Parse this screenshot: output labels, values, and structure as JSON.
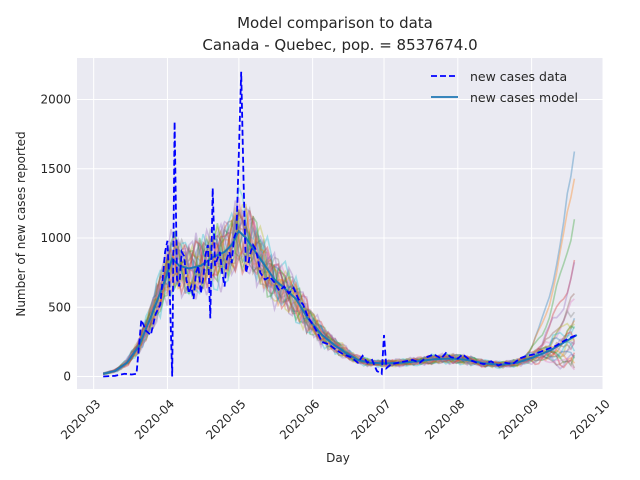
{
  "chart_data": {
    "type": "line",
    "title": "Model comparison to data",
    "subtitle": "Canada - Quebec, pop. = 8537674.0",
    "xlabel": "Day",
    "ylabel": "Number of new cases reported",
    "x_type": "date",
    "xlim": [
      "2020-02-23",
      "2020-10-01"
    ],
    "ylim": [
      -90,
      2300
    ],
    "x_ticks": [
      "2020-03-01",
      "2020-04-01",
      "2020-05-01",
      "2020-06-01",
      "2020-07-01",
      "2020-08-01",
      "2020-09-01",
      "2020-10-01"
    ],
    "x_tick_labels": [
      "2020-03",
      "2020-04",
      "2020-05",
      "2020-06",
      "2020-07",
      "2020-08",
      "2020-09",
      "2020-10"
    ],
    "y_ticks": [
      0,
      500,
      1000,
      1500,
      2000
    ],
    "y_tick_labels": [
      "0",
      "500",
      "1000",
      "1500",
      "2000"
    ],
    "grid": true,
    "legend_position": "top-right",
    "background_color": "#eaeaf2",
    "grid_color": "#ffffff",
    "model_palette": [
      "#1f77b4",
      "#ff7f0e",
      "#2ca02c",
      "#d62728",
      "#9467bd",
      "#8c564b",
      "#e377c2",
      "#7f7f7f",
      "#bcbd22",
      "#17becf"
    ],
    "series": [
      {
        "name": "new cases data",
        "style": "dashed",
        "color": "#0000ff",
        "points": [
          [
            "2020-03-05",
            0
          ],
          [
            "2020-03-10",
            5
          ],
          [
            "2020-03-14",
            20
          ],
          [
            "2020-03-17",
            15
          ],
          [
            "2020-03-19",
            20
          ],
          [
            "2020-03-21",
            410
          ],
          [
            "2020-03-23",
            330
          ],
          [
            "2020-03-25",
            300
          ],
          [
            "2020-03-27",
            450
          ],
          [
            "2020-03-29",
            520
          ],
          [
            "2020-03-31",
            900
          ],
          [
            "2020-04-01",
            980
          ],
          [
            "2020-04-02",
            600
          ],
          [
            "2020-04-03",
            0
          ],
          [
            "2020-04-04",
            1840
          ],
          [
            "2020-04-05",
            700
          ],
          [
            "2020-04-06",
            650
          ],
          [
            "2020-04-07",
            900
          ],
          [
            "2020-04-08",
            870
          ],
          [
            "2020-04-09",
            700
          ],
          [
            "2020-04-10",
            600
          ],
          [
            "2020-04-11",
            650
          ],
          [
            "2020-04-12",
            560
          ],
          [
            "2020-04-13",
            750
          ],
          [
            "2020-04-14",
            800
          ],
          [
            "2020-04-15",
            600
          ],
          [
            "2020-04-16",
            700
          ],
          [
            "2020-04-17",
            880
          ],
          [
            "2020-04-18",
            950
          ],
          [
            "2020-04-19",
            420
          ],
          [
            "2020-04-20",
            1360
          ],
          [
            "2020-04-21",
            800
          ],
          [
            "2020-04-22",
            850
          ],
          [
            "2020-04-23",
            900
          ],
          [
            "2020-04-24",
            750
          ],
          [
            "2020-04-25",
            650
          ],
          [
            "2020-04-26",
            850
          ],
          [
            "2020-04-27",
            900
          ],
          [
            "2020-04-28",
            820
          ],
          [
            "2020-04-29",
            1000
          ],
          [
            "2020-04-30",
            1050
          ],
          [
            "2020-05-01",
            1600
          ],
          [
            "2020-05-02",
            2200
          ],
          [
            "2020-05-03",
            1400
          ],
          [
            "2020-05-04",
            750
          ],
          [
            "2020-05-05",
            820
          ],
          [
            "2020-05-06",
            900
          ],
          [
            "2020-05-07",
            950
          ],
          [
            "2020-05-08",
            920
          ],
          [
            "2020-05-09",
            850
          ],
          [
            "2020-05-10",
            750
          ],
          [
            "2020-05-12",
            700
          ],
          [
            "2020-05-14",
            720
          ],
          [
            "2020-05-16",
            680
          ],
          [
            "2020-05-18",
            620
          ],
          [
            "2020-05-20",
            650
          ],
          [
            "2020-05-22",
            600
          ],
          [
            "2020-05-24",
            640
          ],
          [
            "2020-05-26",
            560
          ],
          [
            "2020-05-28",
            520
          ],
          [
            "2020-05-30",
            430
          ],
          [
            "2020-06-02",
            350
          ],
          [
            "2020-06-05",
            250
          ],
          [
            "2020-06-08",
            230
          ],
          [
            "2020-06-11",
            190
          ],
          [
            "2020-06-14",
            160
          ],
          [
            "2020-06-17",
            140
          ],
          [
            "2020-06-20",
            100
          ],
          [
            "2020-06-22",
            150
          ],
          [
            "2020-06-24",
            100
          ],
          [
            "2020-06-26",
            120
          ],
          [
            "2020-06-28",
            40
          ],
          [
            "2020-06-30",
            20
          ],
          [
            "2020-07-01",
            300
          ],
          [
            "2020-07-02",
            60
          ],
          [
            "2020-07-04",
            90
          ],
          [
            "2020-07-07",
            100
          ],
          [
            "2020-07-10",
            110
          ],
          [
            "2020-07-13",
            120
          ],
          [
            "2020-07-16",
            100
          ],
          [
            "2020-07-19",
            140
          ],
          [
            "2020-07-22",
            160
          ],
          [
            "2020-07-25",
            130
          ],
          [
            "2020-07-27",
            170
          ],
          [
            "2020-07-29",
            140
          ],
          [
            "2020-08-01",
            130
          ],
          [
            "2020-08-03",
            160
          ],
          [
            "2020-08-06",
            120
          ],
          [
            "2020-08-09",
            100
          ],
          [
            "2020-08-12",
            90
          ],
          [
            "2020-08-15",
            110
          ],
          [
            "2020-08-18",
            80
          ],
          [
            "2020-08-21",
            100
          ],
          [
            "2020-08-24",
            90
          ],
          [
            "2020-08-27",
            130
          ],
          [
            "2020-08-30",
            150
          ],
          [
            "2020-09-02",
            160
          ],
          [
            "2020-09-05",
            180
          ],
          [
            "2020-09-08",
            200
          ],
          [
            "2020-09-11",
            220
          ],
          [
            "2020-09-14",
            250
          ],
          [
            "2020-09-17",
            280
          ],
          [
            "2020-09-20",
            300
          ]
        ]
      },
      {
        "name": "new cases model",
        "style": "solid",
        "color": "#1f77b4",
        "points": [
          [
            "2020-03-05",
            20
          ],
          [
            "2020-03-10",
            40
          ],
          [
            "2020-03-15",
            100
          ],
          [
            "2020-03-20",
            220
          ],
          [
            "2020-03-25",
            430
          ],
          [
            "2020-03-30",
            650
          ],
          [
            "2020-04-03",
            850
          ],
          [
            "2020-04-06",
            800
          ],
          [
            "2020-04-10",
            780
          ],
          [
            "2020-04-15",
            800
          ],
          [
            "2020-04-20",
            860
          ],
          [
            "2020-04-25",
            900
          ],
          [
            "2020-04-28",
            950
          ],
          [
            "2020-05-01",
            1050
          ],
          [
            "2020-05-04",
            1000
          ],
          [
            "2020-05-08",
            900
          ],
          [
            "2020-05-12",
            800
          ],
          [
            "2020-05-16",
            700
          ],
          [
            "2020-05-20",
            640
          ],
          [
            "2020-05-25",
            560
          ],
          [
            "2020-05-30",
            420
          ],
          [
            "2020-06-05",
            300
          ],
          [
            "2020-06-10",
            230
          ],
          [
            "2020-06-15",
            170
          ],
          [
            "2020-06-20",
            120
          ],
          [
            "2020-06-25",
            100
          ],
          [
            "2020-07-01",
            95
          ],
          [
            "2020-07-08",
            100
          ],
          [
            "2020-07-15",
            110
          ],
          [
            "2020-07-22",
            125
          ],
          [
            "2020-07-29",
            130
          ],
          [
            "2020-08-05",
            120
          ],
          [
            "2020-08-12",
            95
          ],
          [
            "2020-08-19",
            85
          ],
          [
            "2020-08-26",
            100
          ],
          [
            "2020-09-02",
            140
          ],
          [
            "2020-09-09",
            190
          ],
          [
            "2020-09-15",
            250
          ],
          [
            "2020-09-20",
            300
          ]
        ]
      }
    ],
    "model_ensemble_endpoints": [
      1760,
      1600,
      1250,
      900,
      830,
      620,
      560,
      520,
      470,
      430,
      400,
      370,
      340,
      310,
      290,
      270,
      250,
      230,
      210,
      190,
      170,
      150,
      130,
      110,
      90,
      70,
      55
    ]
  }
}
